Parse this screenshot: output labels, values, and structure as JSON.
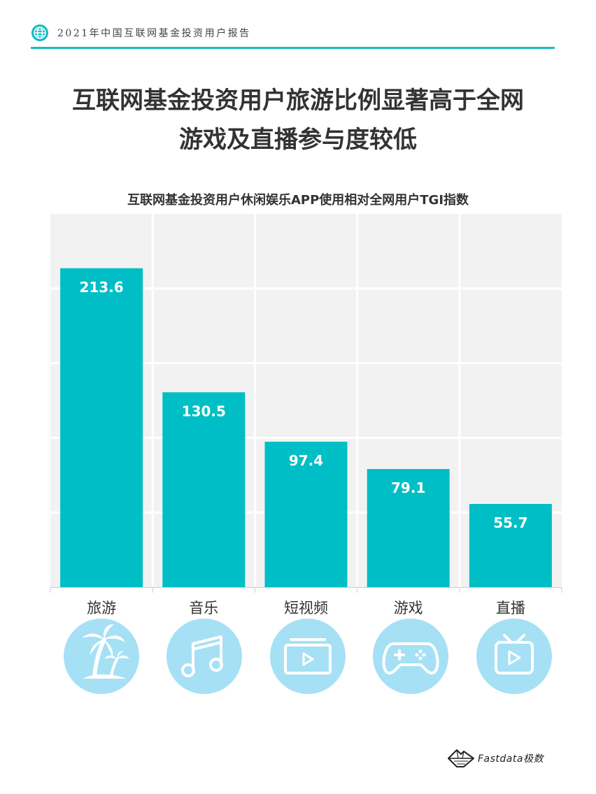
{
  "header": {
    "report_title": "2021年中国互联网基金投资用户报告",
    "icon": "globe-icon",
    "accent_color": "#17bcc4"
  },
  "headline": {
    "line1": "互联网基金投资用户旅游比例显著高于全网",
    "line2": "游戏及直播参与度较低"
  },
  "chart_data": {
    "type": "bar",
    "title": "互联网基金投资用户休闲娱乐APP使用相对全网用户TGI指数",
    "categories": [
      "旅游",
      "音乐",
      "短视频",
      "游戏",
      "直播"
    ],
    "values": [
      213.6,
      130.5,
      97.4,
      79.1,
      55.7
    ],
    "value_labels": [
      "213.6",
      "130.5",
      "97.4",
      "79.1",
      "55.7"
    ],
    "ylim": [
      0,
      250
    ],
    "grid": true,
    "bar_color": "#00bec5",
    "plot_background": "#f2f2f2"
  },
  "category_icons": [
    "palm-tree-island-icon",
    "music-note-icon",
    "video-player-icon",
    "gamepad-icon",
    "tv-icon"
  ],
  "icon_circle_color": "#a6e0f5",
  "brand": {
    "text": "Fastdata极数",
    "icon": "mountain-logo-icon"
  }
}
